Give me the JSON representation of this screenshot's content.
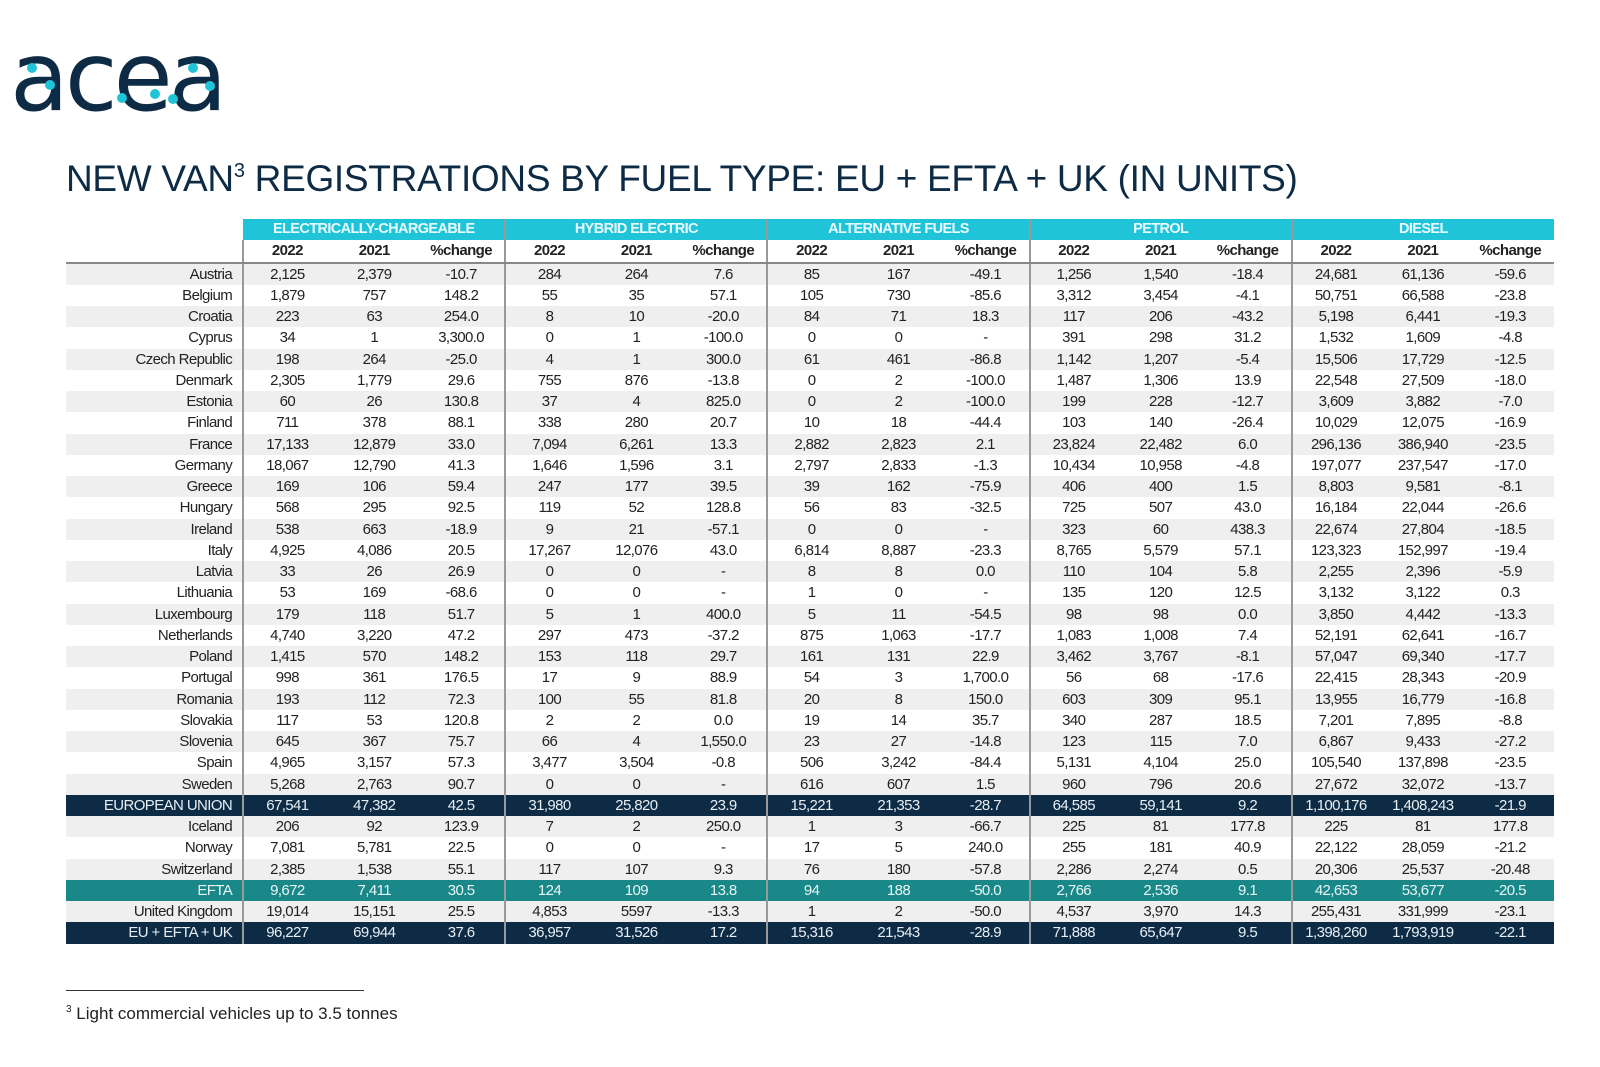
{
  "logo_text": "acea",
  "brand_colors": {
    "navy": "#0d2b45",
    "cyan": "#20c4d9",
    "teal": "#1a8888"
  },
  "title": {
    "text": "NEW VAN",
    "sup": "3",
    "rest": " REGISTRATIONS BY FUEL TYPE: EU + EFTA + UK (IN UNITS)"
  },
  "groups": [
    "ELECTRICALLY-CHARGEABLE",
    "HYBRID ELECTRIC",
    "ALTERNATIVE FUELS",
    "PETROL",
    "DIESEL"
  ],
  "subheaders": [
    "2022",
    "2021",
    "%change"
  ],
  "rows": [
    {
      "type": "row",
      "label": "Austria",
      "values": [
        "2,125",
        "2,379",
        "-10.7",
        "284",
        "264",
        "7.6",
        "85",
        "167",
        "-49.1",
        "1,256",
        "1,540",
        "-18.4",
        "24,681",
        "61,136",
        "-59.6"
      ]
    },
    {
      "type": "row",
      "label": "Belgium",
      "values": [
        "1,879",
        "757",
        "148.2",
        "55",
        "35",
        "57.1",
        "105",
        "730",
        "-85.6",
        "3,312",
        "3,454",
        "-4.1",
        "50,751",
        "66,588",
        "-23.8"
      ]
    },
    {
      "type": "row",
      "label": "Croatia",
      "values": [
        "223",
        "63",
        "254.0",
        "8",
        "10",
        "-20.0",
        "84",
        "71",
        "18.3",
        "117",
        "206",
        "-43.2",
        "5,198",
        "6,441",
        "-19.3"
      ]
    },
    {
      "type": "row",
      "label": "Cyprus",
      "values": [
        "34",
        "1",
        "3,300.0",
        "0",
        "1",
        "-100.0",
        "0",
        "0",
        "-",
        "391",
        "298",
        "31.2",
        "1,532",
        "1,609",
        "-4.8"
      ]
    },
    {
      "type": "row",
      "label": "Czech Republic",
      "values": [
        "198",
        "264",
        "-25.0",
        "4",
        "1",
        "300.0",
        "61",
        "461",
        "-86.8",
        "1,142",
        "1,207",
        "-5.4",
        "15,506",
        "17,729",
        "-12.5"
      ]
    },
    {
      "type": "row",
      "label": "Denmark",
      "values": [
        "2,305",
        "1,779",
        "29.6",
        "755",
        "876",
        "-13.8",
        "0",
        "2",
        "-100.0",
        "1,487",
        "1,306",
        "13.9",
        "22,548",
        "27,509",
        "-18.0"
      ]
    },
    {
      "type": "row",
      "label": "Estonia",
      "values": [
        "60",
        "26",
        "130.8",
        "37",
        "4",
        "825.0",
        "0",
        "2",
        "-100.0",
        "199",
        "228",
        "-12.7",
        "3,609",
        "3,882",
        "-7.0"
      ]
    },
    {
      "type": "row",
      "label": "Finland",
      "values": [
        "711",
        "378",
        "88.1",
        "338",
        "280",
        "20.7",
        "10",
        "18",
        "-44.4",
        "103",
        "140",
        "-26.4",
        "10,029",
        "12,075",
        "-16.9"
      ]
    },
    {
      "type": "row",
      "label": "France",
      "values": [
        "17,133",
        "12,879",
        "33.0",
        "7,094",
        "6,261",
        "13.3",
        "2,882",
        "2,823",
        "2.1",
        "23,824",
        "22,482",
        "6.0",
        "296,136",
        "386,940",
        "-23.5"
      ]
    },
    {
      "type": "row",
      "label": "Germany",
      "values": [
        "18,067",
        "12,790",
        "41.3",
        "1,646",
        "1,596",
        "3.1",
        "2,797",
        "2,833",
        "-1.3",
        "10,434",
        "10,958",
        "-4.8",
        "197,077",
        "237,547",
        "-17.0"
      ]
    },
    {
      "type": "row",
      "label": "Greece",
      "values": [
        "169",
        "106",
        "59.4",
        "247",
        "177",
        "39.5",
        "39",
        "162",
        "-75.9",
        "406",
        "400",
        "1.5",
        "8,803",
        "9,581",
        "-8.1"
      ]
    },
    {
      "type": "row",
      "label": "Hungary",
      "values": [
        "568",
        "295",
        "92.5",
        "119",
        "52",
        "128.8",
        "56",
        "83",
        "-32.5",
        "725",
        "507",
        "43.0",
        "16,184",
        "22,044",
        "-26.6"
      ]
    },
    {
      "type": "row",
      "label": "Ireland",
      "values": [
        "538",
        "663",
        "-18.9",
        "9",
        "21",
        "-57.1",
        "0",
        "0",
        "-",
        "323",
        "60",
        "438.3",
        "22,674",
        "27,804",
        "-18.5"
      ]
    },
    {
      "type": "row",
      "label": "Italy",
      "values": [
        "4,925",
        "4,086",
        "20.5",
        "17,267",
        "12,076",
        "43.0",
        "6,814",
        "8,887",
        "-23.3",
        "8,765",
        "5,579",
        "57.1",
        "123,323",
        "152,997",
        "-19.4"
      ]
    },
    {
      "type": "row",
      "label": "Latvia",
      "values": [
        "33",
        "26",
        "26.9",
        "0",
        "0",
        "-",
        "8",
        "8",
        "0.0",
        "110",
        "104",
        "5.8",
        "2,255",
        "2,396",
        "-5.9"
      ]
    },
    {
      "type": "row",
      "label": "Lithuania",
      "values": [
        "53",
        "169",
        "-68.6",
        "0",
        "0",
        "-",
        "1",
        "0",
        "-",
        "135",
        "120",
        "12.5",
        "3,132",
        "3,122",
        "0.3"
      ]
    },
    {
      "type": "row",
      "label": "Luxembourg",
      "values": [
        "179",
        "118",
        "51.7",
        "5",
        "1",
        "400.0",
        "5",
        "11",
        "-54.5",
        "98",
        "98",
        "0.0",
        "3,850",
        "4,442",
        "-13.3"
      ]
    },
    {
      "type": "row",
      "label": "Netherlands",
      "values": [
        "4,740",
        "3,220",
        "47.2",
        "297",
        "473",
        "-37.2",
        "875",
        "1,063",
        "-17.7",
        "1,083",
        "1,008",
        "7.4",
        "52,191",
        "62,641",
        "-16.7"
      ]
    },
    {
      "type": "row",
      "label": "Poland",
      "values": [
        "1,415",
        "570",
        "148.2",
        "153",
        "118",
        "29.7",
        "161",
        "131",
        "22.9",
        "3,462",
        "3,767",
        "-8.1",
        "57,047",
        "69,340",
        "-17.7"
      ]
    },
    {
      "type": "row",
      "label": "Portugal",
      "values": [
        "998",
        "361",
        "176.5",
        "17",
        "9",
        "88.9",
        "54",
        "3",
        "1,700.0",
        "56",
        "68",
        "-17.6",
        "22,415",
        "28,343",
        "-20.9"
      ]
    },
    {
      "type": "row",
      "label": "Romania",
      "values": [
        "193",
        "112",
        "72.3",
        "100",
        "55",
        "81.8",
        "20",
        "8",
        "150.0",
        "603",
        "309",
        "95.1",
        "13,955",
        "16,779",
        "-16.8"
      ]
    },
    {
      "type": "row",
      "label": "Slovakia",
      "values": [
        "117",
        "53",
        "120.8",
        "2",
        "2",
        "0.0",
        "19",
        "14",
        "35.7",
        "340",
        "287",
        "18.5",
        "7,201",
        "7,895",
        "-8.8"
      ]
    },
    {
      "type": "row",
      "label": "Slovenia",
      "values": [
        "645",
        "367",
        "75.7",
        "66",
        "4",
        "1,550.0",
        "23",
        "27",
        "-14.8",
        "123",
        "115",
        "7.0",
        "6,867",
        "9,433",
        "-27.2"
      ]
    },
    {
      "type": "row",
      "label": "Spain",
      "values": [
        "4,965",
        "3,157",
        "57.3",
        "3,477",
        "3,504",
        "-0.8",
        "506",
        "3,242",
        "-84.4",
        "5,131",
        "4,104",
        "25.0",
        "105,540",
        "137,898",
        "-23.5"
      ]
    },
    {
      "type": "row",
      "label": "Sweden",
      "values": [
        "5,268",
        "2,763",
        "90.7",
        "0",
        "0",
        "-",
        "616",
        "607",
        "1.5",
        "960",
        "796",
        "20.6",
        "27,672",
        "32,072",
        "-13.7"
      ]
    },
    {
      "type": "eu",
      "label": "EUROPEAN UNION",
      "values": [
        "67,541",
        "47,382",
        "42.5",
        "31,980",
        "25,820",
        "23.9",
        "15,221",
        "21,353",
        "-28.7",
        "64,585",
        "59,141",
        "9.2",
        "1,100,176",
        "1,408,243",
        "-21.9"
      ]
    },
    {
      "type": "row",
      "label": "Iceland",
      "values": [
        "206",
        "92",
        "123.9",
        "7",
        "2",
        "250.0",
        "1",
        "3",
        "-66.7",
        "225",
        "81",
        "177.8",
        "225",
        "81",
        "177.8"
      ]
    },
    {
      "type": "row",
      "label": "Norway",
      "values": [
        "7,081",
        "5,781",
        "22.5",
        "0",
        "0",
        "-",
        "17",
        "5",
        "240.0",
        "255",
        "181",
        "40.9",
        "22,122",
        "28,059",
        "-21.2"
      ]
    },
    {
      "type": "row",
      "label": "Switzerland",
      "values": [
        "2,385",
        "1,538",
        "55.1",
        "117",
        "107",
        "9.3",
        "76",
        "180",
        "-57.8",
        "2,286",
        "2,274",
        "0.5",
        "20,306",
        "25,537",
        "-20.48"
      ]
    },
    {
      "type": "efta",
      "label": "EFTA",
      "values": [
        "9,672",
        "7,411",
        "30.5",
        "124",
        "109",
        "13.8",
        "94",
        "188",
        "-50.0",
        "2,766",
        "2,536",
        "9.1",
        "42,653",
        "53,677",
        "-20.5"
      ]
    },
    {
      "type": "row",
      "label": "United Kingdom",
      "values": [
        "19,014",
        "15,151",
        "25.5",
        "4,853",
        "5597",
        "-13.3",
        "1",
        "2",
        "-50.0",
        "4,537",
        "3,970",
        "14.3",
        "255,431",
        "331,999",
        "-23.1"
      ]
    },
    {
      "type": "total",
      "label": "EU + EFTA + UK",
      "values": [
        "96,227",
        "69,944",
        "37.6",
        "36,957",
        "31,526",
        "17.2",
        "15,316",
        "21,543",
        "-28.9",
        "71,888",
        "65,647",
        "9.5",
        "1,398,260",
        "1,793,919",
        "-22.1"
      ]
    }
  ],
  "footnote": {
    "sup": "3",
    "text": "Light commercial vehicles up to 3.5 tonnes"
  }
}
